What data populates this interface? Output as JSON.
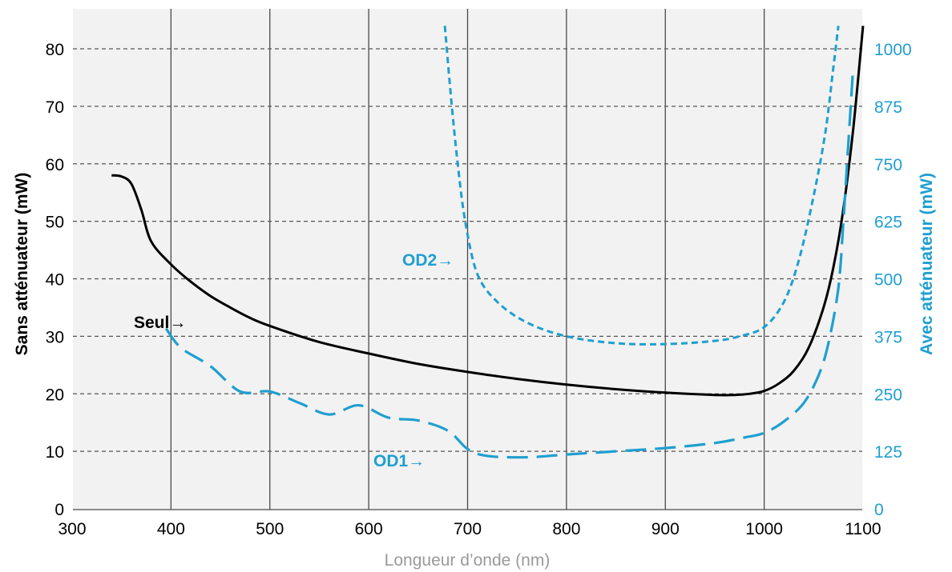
{
  "chart_data": {
    "type": "line",
    "xlabel": "Longueur d’onde (nm)",
    "ylabel_left": "Sans atténuateur (mW)",
    "ylabel_right": "Avec atténuateur (mW)",
    "xlim": [
      300,
      1100
    ],
    "ylim_left": [
      0,
      85
    ],
    "ylim_right": [
      0,
      1062.5
    ],
    "x_ticks": [
      "300",
      "400",
      "500",
      "600",
      "700",
      "800",
      "900",
      "1000",
      "1100"
    ],
    "y_left_ticks": [
      "0",
      "10",
      "20",
      "30",
      "40",
      "50",
      "60",
      "70",
      "80"
    ],
    "y_right_ticks": [
      "0",
      "125",
      "250",
      "375",
      "500",
      "625",
      "750",
      "875",
      "1000"
    ],
    "colors": {
      "black": "#000000",
      "blue": "#1f9fd0",
      "grid": "#555555",
      "background": "#f2f2f2"
    },
    "series": [
      {
        "name": "Seul",
        "axis": "left",
        "style": "solid",
        "annotation": "Seul→",
        "points": [
          [
            340,
            58
          ],
          [
            350,
            57.8
          ],
          [
            360,
            56.5
          ],
          [
            370,
            52
          ],
          [
            380,
            46.5
          ],
          [
            400,
            42.5
          ],
          [
            420,
            39.5
          ],
          [
            440,
            37
          ],
          [
            460,
            35
          ],
          [
            480,
            33.2
          ],
          [
            500,
            31.8
          ],
          [
            550,
            29
          ],
          [
            600,
            27
          ],
          [
            650,
            25.2
          ],
          [
            700,
            23.8
          ],
          [
            750,
            22.6
          ],
          [
            800,
            21.6
          ],
          [
            850,
            20.8
          ],
          [
            900,
            20.2
          ],
          [
            950,
            19.8
          ],
          [
            970,
            19.8
          ],
          [
            985,
            20
          ],
          [
            1000,
            20.5
          ],
          [
            1015,
            21.8
          ],
          [
            1030,
            24
          ],
          [
            1045,
            28
          ],
          [
            1060,
            35
          ],
          [
            1070,
            42
          ],
          [
            1080,
            52
          ],
          [
            1090,
            66
          ],
          [
            1100,
            84
          ]
        ]
      },
      {
        "name": "OD1",
        "axis": "right",
        "style": "long-dash",
        "annotation": "OD1→",
        "points": [
          [
            395,
            392
          ],
          [
            410,
            350
          ],
          [
            440,
            310
          ],
          [
            470,
            255
          ],
          [
            500,
            255
          ],
          [
            530,
            230
          ],
          [
            560,
            205
          ],
          [
            590,
            225
          ],
          [
            620,
            198
          ],
          [
            650,
            192
          ],
          [
            680,
            170
          ],
          [
            700,
            130
          ],
          [
            720,
            115
          ],
          [
            760,
            112
          ],
          [
            800,
            118
          ],
          [
            850,
            125
          ],
          [
            900,
            132
          ],
          [
            950,
            143
          ],
          [
            980,
            155
          ],
          [
            1000,
            165
          ],
          [
            1020,
            190
          ],
          [
            1040,
            230
          ],
          [
            1055,
            290
          ],
          [
            1065,
            360
          ],
          [
            1075,
            480
          ],
          [
            1080,
            620
          ],
          [
            1085,
            790
          ],
          [
            1090,
            960
          ]
        ]
      },
      {
        "name": "OD2",
        "axis": "right",
        "style": "short-dash",
        "annotation": "OD2→",
        "points": [
          [
            677,
            1050
          ],
          [
            683,
            900
          ],
          [
            690,
            750
          ],
          [
            698,
            620
          ],
          [
            710,
            510
          ],
          [
            730,
            450
          ],
          [
            760,
            405
          ],
          [
            800,
            375
          ],
          [
            850,
            360
          ],
          [
            900,
            358
          ],
          [
            950,
            365
          ],
          [
            975,
            375
          ],
          [
            1000,
            395
          ],
          [
            1020,
            450
          ],
          [
            1035,
            540
          ],
          [
            1050,
            680
          ],
          [
            1062,
            820
          ],
          [
            1070,
            960
          ],
          [
            1075,
            1050
          ]
        ]
      }
    ]
  }
}
